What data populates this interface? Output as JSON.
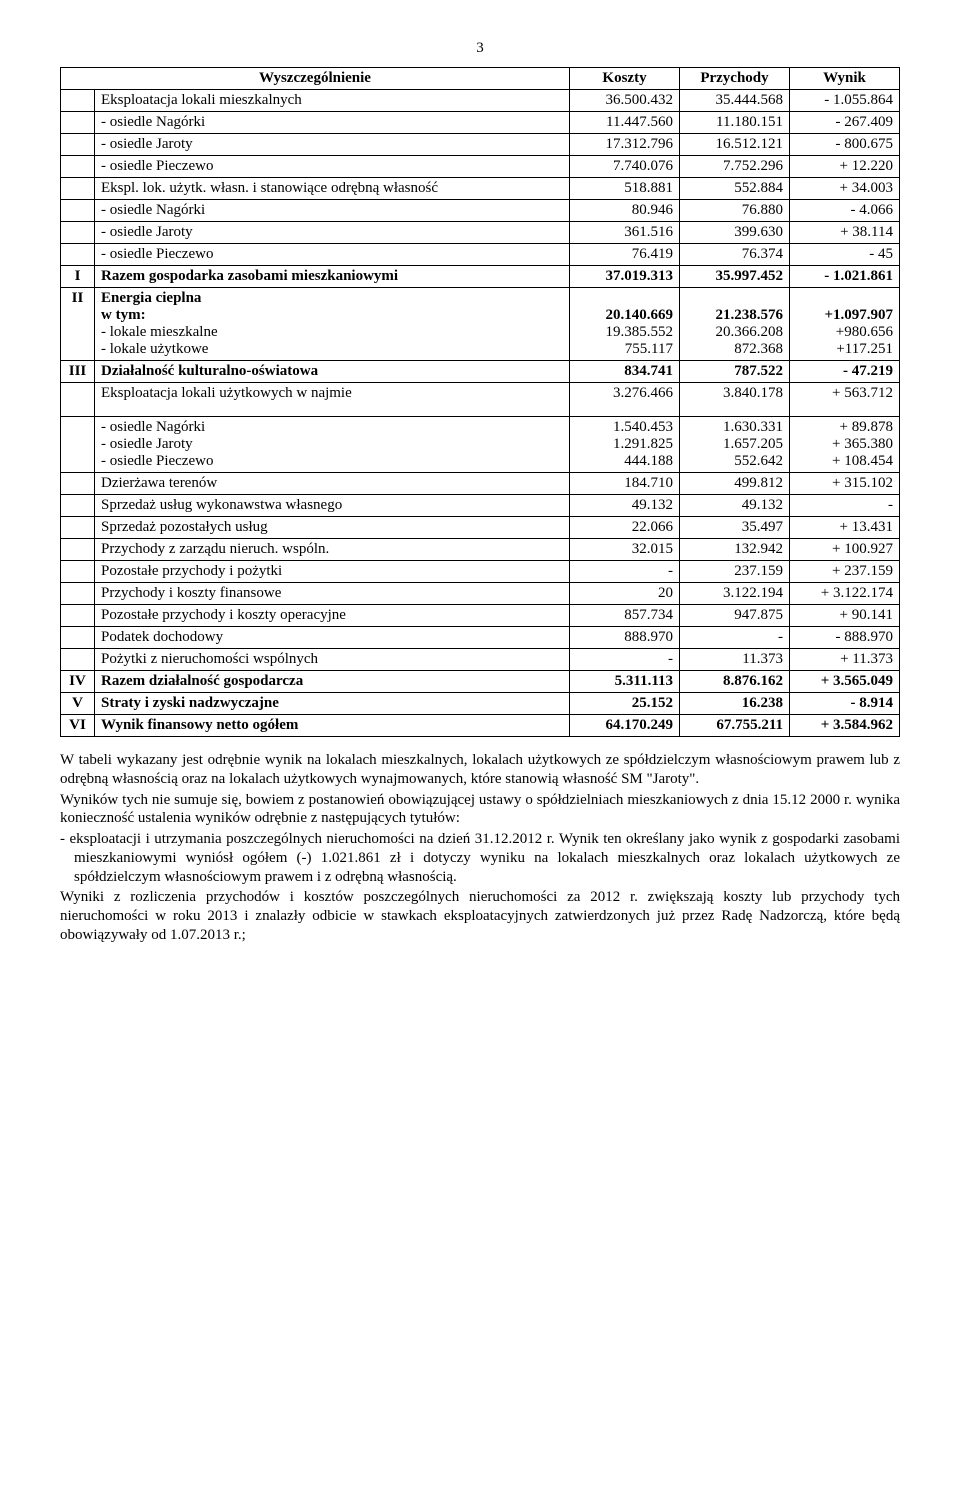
{
  "pageNumber": "3",
  "headers": {
    "c1": "Wyszczególnienie",
    "c2": "Koszty",
    "c3": "Przychody",
    "c4": "Wynik"
  },
  "rows": [
    {
      "idx": "",
      "desc": "Eksploatacja lokali mieszkalnych",
      "k": "36.500.432",
      "p": "35.444.568",
      "w": "- 1.055.864",
      "bold": false
    },
    {
      "idx": "",
      "desc": "- osiedle Nagórki",
      "k": "11.447.560",
      "p": "11.180.151",
      "w": "- 267.409",
      "bold": false
    },
    {
      "idx": "",
      "desc": "- osiedle Jaroty",
      "k": "17.312.796",
      "p": "16.512.121",
      "w": "- 800.675",
      "bold": false
    },
    {
      "idx": "",
      "desc": "- osiedle Pieczewo",
      "k": "7.740.076",
      "p": "7.752.296",
      "w": "+ 12.220",
      "bold": false
    },
    {
      "idx": "",
      "desc": "Ekspl. lok. użytk. własn. i stanowiące odrębną własność",
      "k": "518.881",
      "p": "552.884",
      "w": "+ 34.003",
      "bold": false
    },
    {
      "idx": "",
      "desc": "- osiedle Nagórki",
      "k": "80.946",
      "p": "76.880",
      "w": "- 4.066",
      "bold": false
    },
    {
      "idx": "",
      "desc": "- osiedle Jaroty",
      "k": "361.516",
      "p": "399.630",
      "w": "+ 38.114",
      "bold": false
    },
    {
      "idx": "",
      "desc": "- osiedle Pieczewo",
      "k": "76.419",
      "p": "76.374",
      "w": "- 45",
      "bold": false
    },
    {
      "idx": "I",
      "desc": "Razem gospodarka zasobami mieszkaniowymi",
      "k": "37.019.313",
      "p": "35.997.452",
      "w": "- 1.021.861",
      "bold": true
    },
    {
      "idx": "II",
      "multi": true,
      "lines": [
        {
          "d": "Energia cieplna",
          "k": "",
          "p": "",
          "w": "",
          "bold": true
        },
        {
          "d": "w  tym:",
          "k": "20.140.669",
          "p": "21.238.576",
          "w": "+1.097.907",
          "bold": true
        },
        {
          "d": "- lokale mieszkalne",
          "k": "19.385.552",
          "p": "20.366.208",
          "w": "+980.656",
          "bold": false
        },
        {
          "d": "- lokale użytkowe",
          "k": "755.117",
          "p": "872.368",
          "w": "+117.251",
          "bold": false
        }
      ]
    },
    {
      "idx": "III",
      "desc": "Działalność kulturalno-oświatowa",
      "k": "834.741",
      "p": "787.522",
      "w": "- 47.219",
      "bold": true
    },
    {
      "idx": "",
      "desc": "Eksploatacja lokali użytkowych w najmie",
      "k": "3.276.466",
      "p": "3.840.178",
      "w": "+ 563.712",
      "bold": false,
      "padBottom": true
    },
    {
      "idx": "",
      "multi": true,
      "lines": [
        {
          "d": "- osiedle Nagórki",
          "k": "1.540.453",
          "p": "1.630.331",
          "w": "+ 89.878",
          "bold": false
        },
        {
          "d": "- osiedle Jaroty",
          "k": "1.291.825",
          "p": "1.657.205",
          "w": "+ 365.380",
          "bold": false
        },
        {
          "d": "- osiedle Pieczewo",
          "k": "444.188",
          "p": "552.642",
          "w": "+ 108.454",
          "bold": false
        }
      ]
    },
    {
      "idx": "",
      "desc": "Dzierżawa terenów",
      "k": "184.710",
      "p": "499.812",
      "w": "+ 315.102",
      "bold": false
    },
    {
      "idx": "",
      "desc": "Sprzedaż usług wykonawstwa własnego",
      "k": "49.132",
      "p": "49.132",
      "w": "-",
      "bold": false
    },
    {
      "idx": "",
      "desc": "Sprzedaż pozostałych usług",
      "k": "22.066",
      "p": "35.497",
      "w": "+ 13.431",
      "bold": false
    },
    {
      "idx": "",
      "desc": "Przychody z zarządu nieruch. wspóln.",
      "k": "32.015",
      "p": "132.942",
      "w": "+ 100.927",
      "bold": false
    },
    {
      "idx": "",
      "desc": "Pozostałe przychody i pożytki",
      "k": "-",
      "p": "237.159",
      "w": "+ 237.159",
      "bold": false
    },
    {
      "idx": "",
      "desc": "Przychody i koszty finansowe",
      "k": "20",
      "p": "3.122.194",
      "w": "+ 3.122.174",
      "bold": false
    },
    {
      "idx": "",
      "desc": "Pozostałe przychody i koszty operacyjne",
      "k": "857.734",
      "p": "947.875",
      "w": "+ 90.141",
      "bold": false
    },
    {
      "idx": "",
      "desc": "Podatek dochodowy",
      "k": "888.970",
      "p": "-",
      "w": "- 888.970",
      "bold": false
    },
    {
      "idx": "",
      "desc": "Pożytki z nieruchomości wspólnych",
      "k": "-",
      "p": "11.373",
      "w": "+ 11.373",
      "bold": false
    },
    {
      "idx": "IV",
      "desc": "Razem działalność gospodarcza",
      "k": "5.311.113",
      "p": "8.876.162",
      "w": "+ 3.565.049",
      "bold": true
    },
    {
      "idx": "V",
      "desc": "Straty i zyski nadzwyczajne",
      "k": "25.152",
      "p": "16.238",
      "w": "- 8.914",
      "bold": true
    },
    {
      "idx": "VI",
      "desc": "Wynik finansowy netto ogółem",
      "k": "64.170.249",
      "p": "67.755.211",
      "w": "+ 3.584.962",
      "bold": true
    }
  ],
  "paragraphs": [
    "W tabeli wykazany jest odrębnie wynik na lokalach mieszkalnych, lokalach użytkowych ze spółdzielczym własnościowym prawem lub z odrębną własnością oraz na lokalach użytkowych wynajmowanych, które stanowią własność SM \"Jaroty\".",
    "Wyników tych nie sumuje się, bowiem z postanowień obowiązującej ustawy o spółdzielniach mieszkaniowych z dnia 15.12 2000 r. wynika konieczność ustalenia wyników odrębnie z następujących tytułów:",
    "- eksploatacji i utrzymania poszczególnych nieruchomości na dzień 31.12.2012 r. Wynik ten określany jako wynik z gospodarki zasobami mieszkaniowymi wyniósł ogółem (-) 1.021.861 zł i dotyczy wyniku na lokalach mieszkalnych oraz lokalach użytkowych ze spółdzielczym własnościowym prawem i z odrębną własnością.",
    "Wyniki z rozliczenia przychodów i kosztów poszczególnych nieruchomości za 2012 r. zwiększają koszty lub przychody tych nieruchomości w roku 2013 i znalazły odbicie w stawkach eksploatacyjnych zatwierdzonych już przez Radę Nadzorczą, które będą obowiązywały od 1.07.2013 r.;"
  ]
}
